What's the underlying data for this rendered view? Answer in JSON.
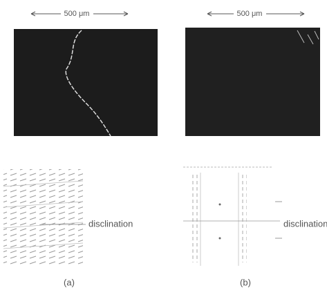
{
  "figure": {
    "panels": [
      {
        "scale_label": "500 μm",
        "annotation": "disclination",
        "label": "(a)"
      },
      {
        "scale_label": "500 μm",
        "annotation": "disclination",
        "label": "(b)"
      }
    ]
  }
}
